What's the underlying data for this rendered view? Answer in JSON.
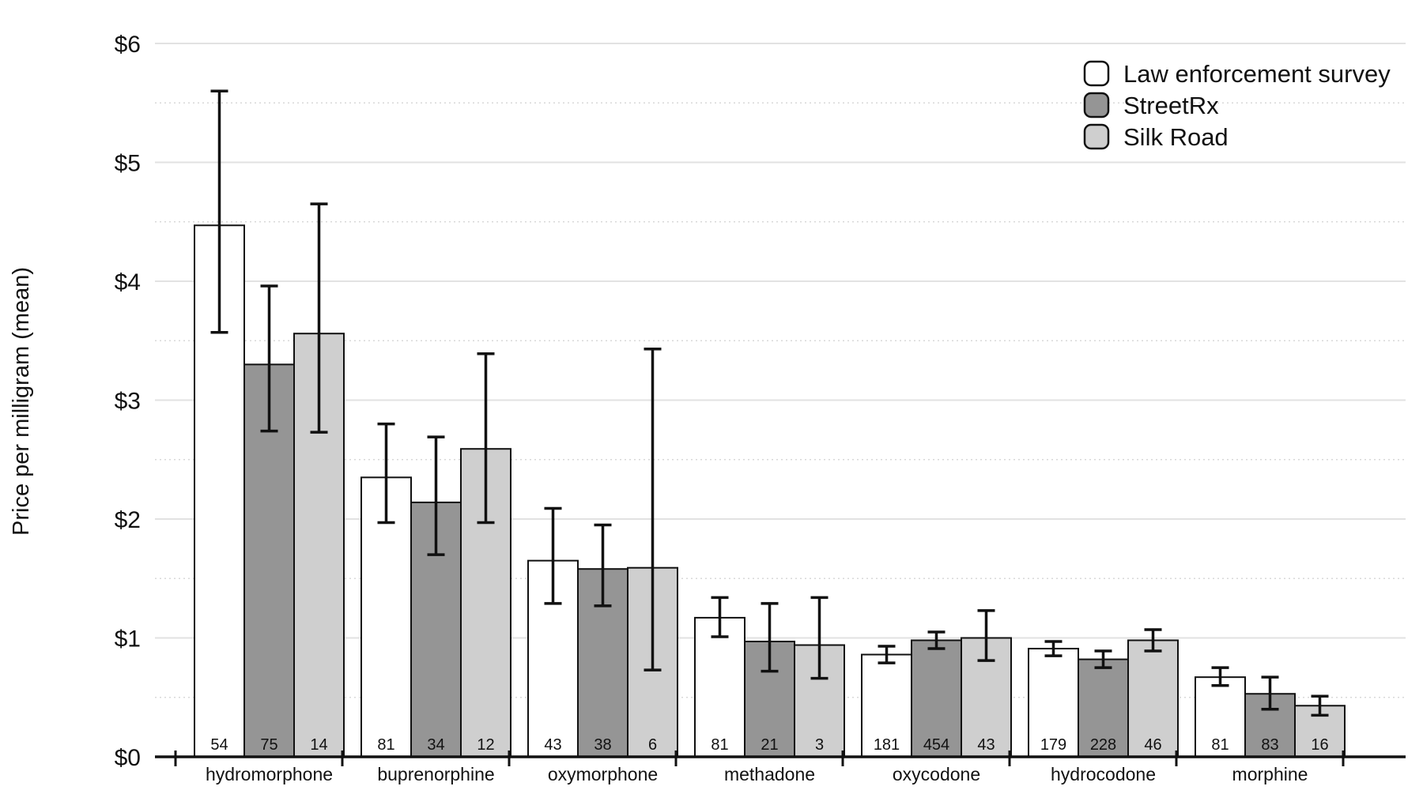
{
  "chart_data": {
    "type": "bar",
    "title": "",
    "xlabel": "",
    "ylabel": "Price per milligram (mean)",
    "ylim": [
      0,
      6
    ],
    "yticks": [
      "$0",
      "$1",
      "$2",
      "$3",
      "$4",
      "$5",
      "$6"
    ],
    "grid": "horizontal (solid at whole dollars, dotted at half dollars)",
    "legend_position": "top-right",
    "categories": [
      "hydromorphone",
      "buprenorphine",
      "oxymorphone",
      "methadone",
      "oxycodone",
      "hydrocodone",
      "morphine"
    ],
    "series": [
      {
        "name": "Law enforcement survey",
        "color": "#ffffff",
        "values": [
          4.47,
          2.35,
          1.65,
          1.17,
          0.86,
          0.91,
          0.67
        ],
        "err_low": [
          3.57,
          1.97,
          1.29,
          1.01,
          0.79,
          0.85,
          0.6
        ],
        "err_high": [
          5.6,
          2.8,
          2.09,
          1.34,
          0.93,
          0.97,
          0.75
        ],
        "n": [
          "54",
          "81",
          "43",
          "81",
          "181",
          "179",
          "81"
        ]
      },
      {
        "name": "StreetRx",
        "color": "#959595",
        "values": [
          3.3,
          2.14,
          1.58,
          0.97,
          0.98,
          0.82,
          0.53
        ],
        "err_low": [
          2.74,
          1.7,
          1.27,
          0.72,
          0.91,
          0.75,
          0.4
        ],
        "err_high": [
          3.96,
          2.69,
          1.95,
          1.29,
          1.05,
          0.89,
          0.67
        ],
        "n": [
          "75",
          "34",
          "38",
          "21",
          "454",
          "228",
          "83"
        ]
      },
      {
        "name": "Silk Road",
        "color": "#cfcfcf",
        "values": [
          3.56,
          2.59,
          1.59,
          0.94,
          1.0,
          0.98,
          0.43
        ],
        "err_low": [
          2.73,
          1.97,
          0.73,
          0.66,
          0.81,
          0.89,
          0.35
        ],
        "err_high": [
          4.65,
          3.39,
          3.43,
          1.34,
          1.23,
          1.07,
          0.51
        ],
        "n": [
          "14",
          "12",
          "6",
          "3",
          "43",
          "46",
          "16"
        ]
      }
    ]
  }
}
